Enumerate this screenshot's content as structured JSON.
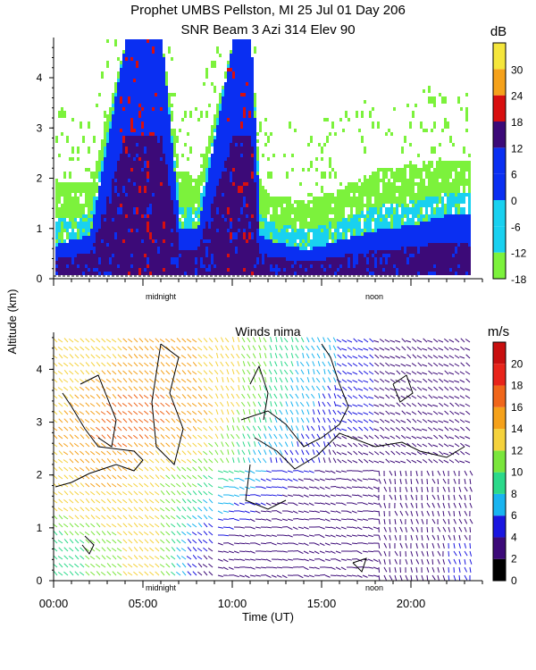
{
  "header": {
    "title_line1": "Prophet  UMBS Pellston, MI  25 Jul 01 Day 206",
    "title_line2": "SNR Beam 3 Azi 314 Elev 90"
  },
  "shared": {
    "ylabel": "Altitude (km)",
    "xlabel": "Time (UT)",
    "marker_midnight": "midnight",
    "marker_noon": "noon",
    "x_tick_labels": [
      "00:00",
      "05:00",
      "10:00",
      "15:00",
      "20:00"
    ]
  },
  "colors": {
    "snr_scale": [
      "#7cf23c",
      "#19d1f0",
      "#0a2ff2",
      "#3c0a78",
      "#d80f0f",
      "#f5a11a",
      "#f5e63c"
    ],
    "wind_scale": [
      "#000000",
      "#3c0a78",
      "#1a16e0",
      "#19b4f0",
      "#2bd98a",
      "#7ae63c",
      "#f5d23c",
      "#f5a11a",
      "#f0661a",
      "#e8241a",
      "#c80f0f"
    ]
  },
  "chart_data": [
    {
      "type": "heatmap",
      "title": "SNR Beam 3 Azi 314 Elev 90",
      "ylabel": "Altitude (km)",
      "xlim": [
        0,
        24
      ],
      "ylim": [
        0,
        4.8
      ],
      "y_ticks": [
        0,
        1,
        2,
        3,
        4
      ],
      "colorbar": {
        "unit": "dB",
        "range": [
          -18,
          36
        ],
        "ticks": [
          -18,
          -12,
          -6,
          0,
          6,
          12,
          18,
          24,
          30
        ],
        "labels": [
          "-18",
          "-12",
          "-6",
          "0",
          "6",
          "12",
          "18",
          "24",
          "30"
        ]
      },
      "snr_levels": [
        -18,
        -12,
        -6,
        0,
        6,
        12,
        18,
        24,
        30
      ],
      "time_hours": [
        0,
        2,
        4,
        5,
        6,
        7,
        8,
        10,
        11,
        11.5,
        12,
        14,
        16,
        18,
        20,
        22,
        23.5
      ],
      "top_of_signal_km": [
        2.0,
        1.9,
        4.8,
        4.8,
        4.8,
        2.2,
        2.0,
        4.8,
        4.8,
        2.0,
        1.7,
        1.6,
        1.8,
        2.2,
        2.3,
        2.4,
        2.4
      ],
      "strong_echo_top_km": [
        0.7,
        0.9,
        4.8,
        4.8,
        4.8,
        1.0,
        1.0,
        4.8,
        4.8,
        0.9,
        0.8,
        0.6,
        0.8,
        1.0,
        1.1,
        1.3,
        1.3
      ]
    },
    {
      "type": "wind_barbs",
      "title": "Winds nima",
      "ylabel": "Altitude (km)",
      "xlabel": "Time (UT)",
      "xlim": [
        0,
        24
      ],
      "ylim": [
        0,
        4.7
      ],
      "y_ticks": [
        0,
        1,
        2,
        3,
        4
      ],
      "x_ticks": [
        0,
        5,
        10,
        15,
        20
      ],
      "x_tick_labels": [
        "00:00",
        "05:00",
        "10:00",
        "15:00",
        "20:00"
      ],
      "colorbar": {
        "unit": "m/s",
        "range": [
          0,
          22
        ],
        "ticks": [
          0,
          2,
          4,
          6,
          8,
          10,
          12,
          14,
          16,
          18,
          20
        ],
        "labels": [
          "0",
          "2",
          "4",
          "6",
          "8",
          "10",
          "12",
          "14",
          "16",
          "18",
          "20"
        ]
      },
      "time_hours": [
        0,
        2,
        4,
        6,
        8,
        10,
        12,
        14,
        16,
        18,
        20,
        22,
        23.5
      ],
      "altitude_km": [
        0.25,
        0.75,
        1.25,
        1.75,
        2.25,
        2.75,
        3.25,
        3.75,
        4.25
      ],
      "speed_ms": [
        [
          9,
          10,
          12,
          12,
          4,
          3,
          3,
          2,
          2,
          3,
          3,
          4,
          4
        ],
        [
          9,
          10,
          12,
          12,
          5,
          3,
          2,
          2,
          2,
          3,
          3,
          4,
          4
        ],
        [
          12,
          13,
          13,
          12,
          8,
          5,
          3,
          3,
          3,
          3,
          3,
          3,
          3
        ],
        [
          12,
          14,
          14,
          12,
          10,
          7,
          5,
          3,
          2,
          2,
          2,
          3,
          3
        ],
        [
          13,
          15,
          15,
          13,
          12,
          10,
          6,
          5,
          3,
          3,
          3,
          4,
          4
        ],
        [
          14,
          16,
          17,
          16,
          14,
          11,
          8,
          6,
          4,
          4,
          3,
          3,
          3
        ],
        [
          13,
          15,
          17,
          17,
          15,
          13,
          9,
          7,
          4,
          4,
          4,
          3,
          3
        ],
        [
          13,
          14,
          15,
          15,
          14,
          13,
          10,
          7,
          6,
          4,
          3,
          3,
          3
        ],
        [
          12,
          13,
          14,
          15,
          14,
          13,
          10,
          8,
          6,
          4,
          3,
          3,
          3
        ]
      ]
    }
  ]
}
